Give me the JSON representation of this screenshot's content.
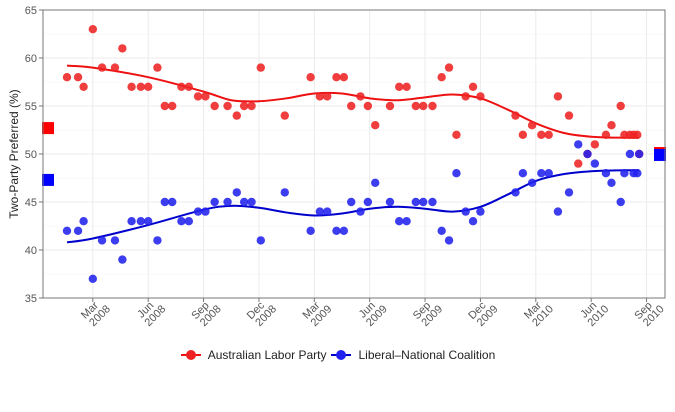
{
  "chart_data": {
    "type": "scatter",
    "title": "",
    "xlabel": "",
    "ylabel": "Two-Party Preferred (%)",
    "ylim": [
      35,
      65
    ],
    "yticks": [
      35,
      40,
      45,
      50,
      55,
      60,
      65
    ],
    "xlim_months": [
      -2.7,
      31.0
    ],
    "xtick_labels": [
      {
        "m": 0,
        "label": "Mar 2008"
      },
      {
        "m": 3,
        "label": "Jun 2008"
      },
      {
        "m": 6,
        "label": "Sep 2008"
      },
      {
        "m": 9,
        "label": "Dec 2008"
      },
      {
        "m": 12,
        "label": "Mar 2009"
      },
      {
        "m": 15,
        "label": "Jun 2009"
      },
      {
        "m": 18,
        "label": "Sep 2009"
      },
      {
        "m": 21,
        "label": "Dec 2009"
      },
      {
        "m": 24,
        "label": "Mar 2010"
      },
      {
        "m": 27,
        "label": "Jun 2010"
      },
      {
        "m": 30,
        "label": "Sep 2010"
      }
    ],
    "x_unit": "months since Mar 2008",
    "grid": true,
    "legend_position": "bottom",
    "series": [
      {
        "name": "Australian Labor Party",
        "color": "#ee1111",
        "point_color": "#ee2222",
        "points": [
          [
            -1.4,
            58
          ],
          [
            -0.8,
            58
          ],
          [
            -0.5,
            57
          ],
          [
            0.0,
            63
          ],
          [
            0.5,
            59
          ],
          [
            1.2,
            59
          ],
          [
            1.6,
            61
          ],
          [
            2.1,
            57
          ],
          [
            2.6,
            57
          ],
          [
            3.0,
            57
          ],
          [
            3.5,
            59
          ],
          [
            3.9,
            55
          ],
          [
            4.3,
            55
          ],
          [
            4.8,
            57
          ],
          [
            5.2,
            57
          ],
          [
            5.7,
            56
          ],
          [
            6.1,
            56
          ],
          [
            6.6,
            55
          ],
          [
            7.3,
            55
          ],
          [
            7.8,
            54
          ],
          [
            8.2,
            55
          ],
          [
            8.6,
            55
          ],
          [
            9.1,
            59
          ],
          [
            10.4,
            54
          ],
          [
            11.8,
            58
          ],
          [
            12.3,
            56
          ],
          [
            12.7,
            56
          ],
          [
            13.2,
            58
          ],
          [
            13.6,
            58
          ],
          [
            14.0,
            55
          ],
          [
            14.5,
            56
          ],
          [
            14.9,
            55
          ],
          [
            15.3,
            53
          ],
          [
            16.1,
            55
          ],
          [
            16.6,
            57
          ],
          [
            17.0,
            57
          ],
          [
            17.5,
            55
          ],
          [
            17.9,
            55
          ],
          [
            18.4,
            55
          ],
          [
            18.9,
            58
          ],
          [
            19.3,
            59
          ],
          [
            19.7,
            52
          ],
          [
            20.2,
            56
          ],
          [
            20.6,
            57
          ],
          [
            21.0,
            56
          ],
          [
            22.9,
            54
          ],
          [
            23.3,
            52
          ],
          [
            23.8,
            53
          ],
          [
            24.3,
            52
          ],
          [
            24.7,
            52
          ],
          [
            25.2,
            56
          ],
          [
            25.8,
            54
          ],
          [
            26.3,
            49
          ],
          [
            26.8,
            50
          ],
          [
            27.2,
            51
          ],
          [
            27.8,
            52
          ],
          [
            28.1,
            53
          ],
          [
            28.6,
            55
          ],
          [
            28.8,
            52
          ],
          [
            29.1,
            52
          ],
          [
            29.3,
            52
          ],
          [
            29.5,
            52
          ],
          [
            29.6,
            50
          ]
        ],
        "trend": [
          [
            -1.4,
            59.2
          ],
          [
            0,
            59
          ],
          [
            3,
            58
          ],
          [
            6,
            56.5
          ],
          [
            7.5,
            55.6
          ],
          [
            9,
            55.5
          ],
          [
            10.5,
            55.8
          ],
          [
            12,
            56.3
          ],
          [
            13.5,
            56.3
          ],
          [
            15,
            55.8
          ],
          [
            16.5,
            55.6
          ],
          [
            18,
            55.9
          ],
          [
            19.5,
            56.2
          ],
          [
            21,
            55.8
          ],
          [
            22.5,
            54.6
          ],
          [
            24,
            53.2
          ],
          [
            25.5,
            52.2
          ],
          [
            27,
            51.8
          ],
          [
            28.5,
            51.7
          ],
          [
            29.6,
            51.7
          ]
        ],
        "final_result_marker": 52.7,
        "final_result_marker_right": 50.1
      },
      {
        "name": "Liberal–National Coalition",
        "color": "#0000cc",
        "point_color": "#2222ee",
        "points": [
          [
            -1.4,
            42
          ],
          [
            -0.8,
            42
          ],
          [
            -0.5,
            43
          ],
          [
            0.0,
            37
          ],
          [
            0.5,
            41
          ],
          [
            1.2,
            41
          ],
          [
            1.6,
            39
          ],
          [
            2.1,
            43
          ],
          [
            2.6,
            43
          ],
          [
            3.0,
            43
          ],
          [
            3.5,
            41
          ],
          [
            3.9,
            45
          ],
          [
            4.3,
            45
          ],
          [
            4.8,
            43
          ],
          [
            5.2,
            43
          ],
          [
            5.7,
            44
          ],
          [
            6.1,
            44
          ],
          [
            6.6,
            45
          ],
          [
            7.3,
            45
          ],
          [
            7.8,
            46
          ],
          [
            8.2,
            45
          ],
          [
            8.6,
            45
          ],
          [
            9.1,
            41
          ],
          [
            10.4,
            46
          ],
          [
            11.8,
            42
          ],
          [
            12.3,
            44
          ],
          [
            12.7,
            44
          ],
          [
            13.2,
            42
          ],
          [
            13.6,
            42
          ],
          [
            14.0,
            45
          ],
          [
            14.5,
            44
          ],
          [
            14.9,
            45
          ],
          [
            15.3,
            47
          ],
          [
            16.1,
            45
          ],
          [
            16.6,
            43
          ],
          [
            17.0,
            43
          ],
          [
            17.5,
            45
          ],
          [
            17.9,
            45
          ],
          [
            18.4,
            45
          ],
          [
            18.9,
            42
          ],
          [
            19.3,
            41
          ],
          [
            19.7,
            48
          ],
          [
            20.2,
            44
          ],
          [
            20.6,
            43
          ],
          [
            21.0,
            44
          ],
          [
            22.9,
            46
          ],
          [
            23.3,
            48
          ],
          [
            23.8,
            47
          ],
          [
            24.3,
            48
          ],
          [
            24.7,
            48
          ],
          [
            25.2,
            44
          ],
          [
            25.8,
            46
          ],
          [
            26.3,
            51
          ],
          [
            26.8,
            50
          ],
          [
            27.2,
            49
          ],
          [
            27.8,
            48
          ],
          [
            28.1,
            47
          ],
          [
            28.6,
            45
          ],
          [
            28.8,
            48
          ],
          [
            29.1,
            50
          ],
          [
            29.3,
            48
          ],
          [
            29.5,
            48
          ],
          [
            29.6,
            50
          ]
        ],
        "trend": [
          [
            -1.4,
            40.8
          ],
          [
            0,
            41.2
          ],
          [
            3,
            42.6
          ],
          [
            6,
            44.2
          ],
          [
            7.5,
            44.6
          ],
          [
            9,
            44.4
          ],
          [
            10.5,
            43.9
          ],
          [
            12,
            43.6
          ],
          [
            13.5,
            43.8
          ],
          [
            15,
            44.3
          ],
          [
            16.5,
            44.5
          ],
          [
            18,
            44.3
          ],
          [
            19.5,
            44.0
          ],
          [
            21,
            44.5
          ],
          [
            22.5,
            45.8
          ],
          [
            24,
            47.2
          ],
          [
            25.5,
            47.9
          ],
          [
            27,
            48.2
          ],
          [
            28.5,
            48.3
          ],
          [
            29.6,
            48.3
          ]
        ],
        "final_result_marker": 47.3,
        "final_result_marker_right": 49.9
      }
    ]
  }
}
